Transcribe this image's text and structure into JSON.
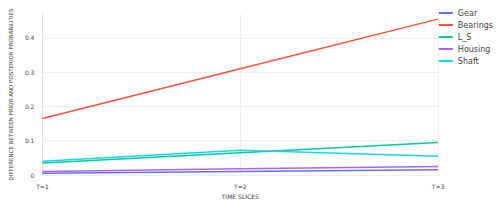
{
  "chart_data": {
    "type": "line",
    "x_label": "TIME SLICES",
    "y_label": "DIFFERENCE BETWEEN PRIOR AND POSTERIOR PROBABILITIES",
    "categories": [
      "T=1",
      "T=2",
      "T=3"
    ],
    "series": [
      {
        "name": "Gear",
        "color": "#636efa",
        "values": [
          0.005,
          0.01,
          0.015
        ]
      },
      {
        "name": "Bearings",
        "color": "#ef553b",
        "values": [
          0.165,
          0.31,
          0.455
        ]
      },
      {
        "name": "L_S",
        "color": "#00cc96",
        "values": [
          0.035,
          0.065,
          0.095
        ]
      },
      {
        "name": "Housing",
        "color": "#ab63fa",
        "values": [
          0.01,
          0.018,
          0.025
        ]
      },
      {
        "name": "Shaft",
        "color": "#19d3f3",
        "values": [
          0.04,
          0.072,
          0.055
        ]
      }
    ],
    "ylim": [
      0,
      0.47
    ],
    "yticks": [
      0,
      0.1,
      0.2,
      0.3,
      0.4
    ],
    "grid": true,
    "legend": "top-right"
  }
}
